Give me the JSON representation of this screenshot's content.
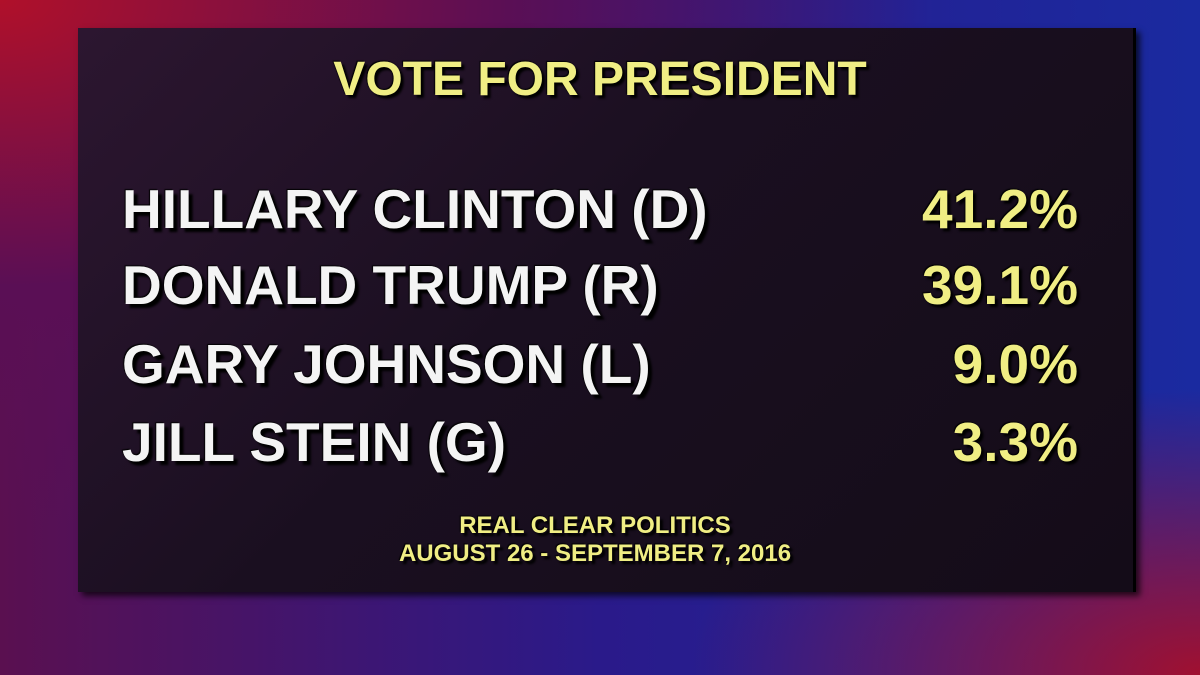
{
  "title": "VOTE FOR PRESIDENT",
  "rows": [
    {
      "name": "HILLARY CLINTON (D)",
      "value": "41.2%"
    },
    {
      "name": "DONALD TRUMP (R)",
      "value": "39.1%"
    },
    {
      "name": "GARY JOHNSON (L)",
      "value": "9.0%"
    },
    {
      "name": "JILL STEIN (G)",
      "value": "3.3%"
    }
  ],
  "source": "REAL CLEAR POLITICS",
  "dates": "AUGUST 26 - SEPTEMBER 7, 2016"
}
